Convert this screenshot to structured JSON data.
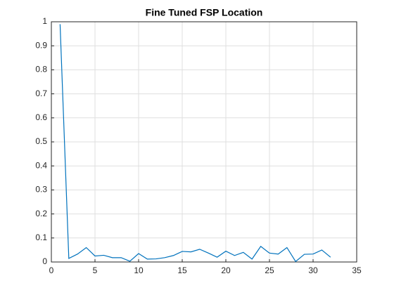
{
  "chart_data": {
    "type": "line",
    "title": "Fine Tuned FSP Location",
    "x": [
      1,
      2,
      3,
      4,
      5,
      6,
      7,
      8,
      9,
      10,
      11,
      12,
      13,
      14,
      15,
      16,
      17,
      18,
      19,
      20,
      21,
      22,
      23,
      24,
      25,
      26,
      27,
      28,
      29,
      30,
      31,
      32
    ],
    "series": [
      {
        "color": "#0072bd",
        "values": [
          0.99,
          0.015,
          0.033,
          0.06,
          0.025,
          0.028,
          0.018,
          0.018,
          0.003,
          0.035,
          0.012,
          0.013,
          0.018,
          0.027,
          0.044,
          0.042,
          0.053,
          0.037,
          0.02,
          0.045,
          0.027,
          0.04,
          0.012,
          0.065,
          0.037,
          0.033,
          0.06,
          0.002,
          0.032,
          0.033,
          0.05,
          0.02
        ]
      }
    ],
    "xlim": [
      0,
      35
    ],
    "xticks": [
      0,
      5,
      10,
      15,
      20,
      25,
      30,
      35
    ],
    "ylim": [
      0,
      1
    ],
    "yticks": [
      0,
      0.1,
      0.2,
      0.3,
      0.4,
      0.5,
      0.6,
      0.7,
      0.8,
      0.9,
      1
    ],
    "grid": true
  }
}
